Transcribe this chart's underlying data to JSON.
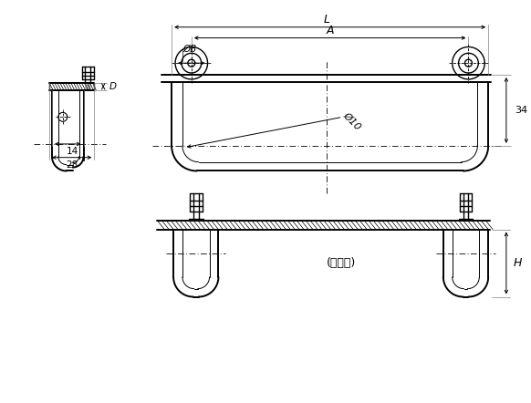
{
  "bg_color": "#ffffff",
  "line_color": "#000000",
  "figsize": [
    5.82,
    4.42
  ],
  "dpi": 100,
  "annotations": {
    "L": "L",
    "A": "A",
    "OB": "ØB",
    "O10": "Ø10",
    "dim34": "34",
    "D": "D",
    "dim14": "14",
    "dim28": "28",
    "H": "H",
    "펼쳐짐": "(펼쳐짘)"
  }
}
